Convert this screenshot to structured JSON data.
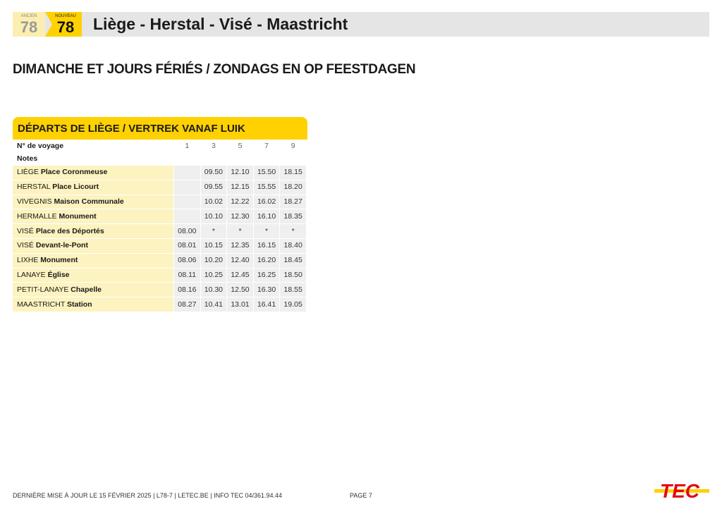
{
  "header": {
    "ancien_label": "ANCIEN",
    "ancien_number": "78",
    "nouveau_label": "NOUVEAU",
    "nouveau_number": "78",
    "title": "Liège - Herstal - Visé - Maastricht"
  },
  "section_title": "DIMANCHE ET JOURS FÉRIÉS / ZONDAGS EN OP FEESTDAGEN",
  "table": {
    "title": "DÉPARTS DE LIÈGE / VERTREK VANAF LUIK",
    "voyage_label": "N° de voyage",
    "notes_label": "Notes",
    "voyages": [
      "1",
      "3",
      "5",
      "7",
      "9"
    ],
    "rows": [
      {
        "city": "LIÈGE",
        "stop": "Place Coronmeuse",
        "times": [
          "",
          "09.50",
          "12.10",
          "15.50",
          "18.15"
        ]
      },
      {
        "city": "HERSTAL",
        "stop": "Place Licourt",
        "times": [
          "",
          "09.55",
          "12.15",
          "15.55",
          "18.20"
        ]
      },
      {
        "city": "VIVEGNIS",
        "stop": "Maison Communale",
        "times": [
          "",
          "10.02",
          "12.22",
          "16.02",
          "18.27"
        ]
      },
      {
        "city": "HERMALLE",
        "stop": "Monument",
        "times": [
          "",
          "10.10",
          "12.30",
          "16.10",
          "18.35"
        ]
      },
      {
        "city": "VISÉ",
        "stop": "Place des Déportés",
        "times": [
          "08.00",
          "*",
          "*",
          "*",
          "*"
        ]
      },
      {
        "city": "VISÉ",
        "stop": "Devant-le-Pont",
        "times": [
          "08.01",
          "10.15",
          "12.35",
          "16.15",
          "18.40"
        ]
      },
      {
        "city": "LIXHE",
        "stop": "Monument",
        "times": [
          "08.06",
          "10.20",
          "12.40",
          "16.20",
          "18.45"
        ]
      },
      {
        "city": "LANAYE",
        "stop": "Église",
        "times": [
          "08.11",
          "10.25",
          "12.45",
          "16.25",
          "18.50"
        ]
      },
      {
        "city": "PETIT-LANAYE",
        "stop": "Chapelle",
        "times": [
          "08.16",
          "10.30",
          "12.50",
          "16.30",
          "18.55"
        ]
      },
      {
        "city": "MAASTRICHT",
        "stop": "Station",
        "times": [
          "08.27",
          "10.41",
          "13.01",
          "16.41",
          "19.05"
        ]
      }
    ]
  },
  "footer": {
    "info": "DERNIÈRE MISE À JOUR LE 15 FÉVRIER 2025  |  L78-7  |  LETEC.BE  |  INFO TEC 04/361.94.44",
    "page": "PAGE 7",
    "logo_text": "TEC"
  },
  "colors": {
    "accent": "#ffd100",
    "stop_bg": "#fcf3c0",
    "time_bg": "#efefef",
    "logo_red": "#e30613"
  }
}
